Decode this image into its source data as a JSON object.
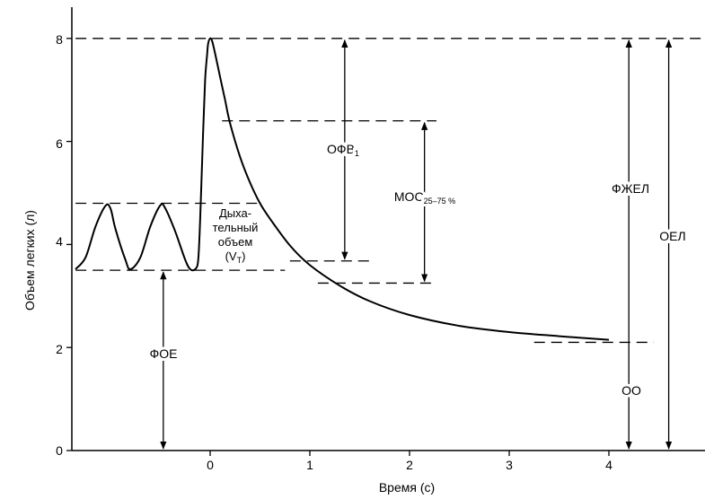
{
  "chart_data": {
    "type": "line",
    "xlabel": "Время (с)",
    "ylabel": "Объем легких (л)",
    "xlim": [
      -1.35,
      5.0
    ],
    "ylim": [
      0,
      8.4
    ],
    "x_ticks": [
      0,
      1,
      2,
      3,
      4
    ],
    "x_tick_labels": [
      "0",
      "1",
      "2",
      "3",
      "4"
    ],
    "y_ticks": [
      0,
      2,
      4,
      6,
      8
    ],
    "y_tick_labels": [
      "0",
      "2",
      "4",
      "6",
      "8"
    ],
    "grid": false,
    "legend": "none",
    "series": [
      {
        "x": [
          -1.35,
          -1.25,
          -1.15,
          -1.05,
          -1.0,
          -0.95,
          -0.85,
          -0.8,
          -0.7,
          -0.6,
          -0.5,
          -0.45,
          -0.35,
          -0.25,
          -0.2,
          -0.15,
          -0.12,
          -0.1,
          -0.07,
          -0.05,
          -0.03,
          -0.02,
          0.0,
          0.02,
          0.05,
          0.1,
          0.15,
          0.2,
          0.3,
          0.4,
          0.5,
          0.6,
          0.8,
          1.0,
          1.3,
          1.6,
          2.0,
          2.5,
          3.0,
          3.5,
          4.0
        ],
        "y": [
          3.52,
          3.75,
          4.35,
          4.75,
          4.7,
          4.3,
          3.7,
          3.52,
          3.75,
          4.35,
          4.76,
          4.7,
          4.25,
          3.7,
          3.52,
          3.52,
          3.7,
          4.5,
          6.2,
          7.2,
          7.7,
          7.9,
          8.0,
          7.95,
          7.7,
          7.25,
          6.8,
          6.35,
          5.7,
          5.2,
          4.8,
          4.5,
          3.98,
          3.6,
          3.2,
          2.9,
          2.63,
          2.42,
          2.3,
          2.22,
          2.15
        ]
      }
    ],
    "reference_lines": [
      {
        "y": 8.0,
        "x_from": -1.35,
        "x_to": 5.0
      },
      {
        "y": 6.4,
        "x_from": 0.12,
        "x_to": 2.27
      },
      {
        "y": 4.8,
        "x_from": -1.35,
        "x_to": 0.48
      },
      {
        "y": 3.68,
        "x_from": 0.8,
        "x_to": 1.62
      },
      {
        "y": 3.5,
        "x_from": -1.35,
        "x_to": 0.75
      },
      {
        "y": 3.25,
        "x_from": 1.08,
        "x_to": 2.27
      },
      {
        "y": 2.1,
        "x_from": 3.25,
        "x_to": 4.45
      }
    ],
    "annotations": {
      "ofv": {
        "label": "ОФВ",
        "sub": "1",
        "x": 1.35,
        "y_from": 8.0,
        "y_to": 3.68
      },
      "mos": {
        "label": "МОС",
        "sub": "25–75 %",
        "x": 2.15,
        "y_from": 6.4,
        "y_to": 3.25
      },
      "fzhel": {
        "label": "ФЖЕЛ",
        "x": 4.2,
        "y_from": 8.0,
        "y_to": 0
      },
      "oel": {
        "label": "ОЕЛ",
        "x": 4.6,
        "y_from": 8.0,
        "y_to": 0
      },
      "oo": {
        "label": "ОО"
      },
      "foe": {
        "label": "ФОЕ",
        "x": -0.47,
        "y_from": 3.5,
        "y_to": 0
      },
      "tidal": {
        "lines": [
          "Дыха-",
          "тельный",
          "объем"
        ],
        "vt": "(V",
        "vt_sub": "T",
        "vt_close": ")"
      }
    }
  }
}
